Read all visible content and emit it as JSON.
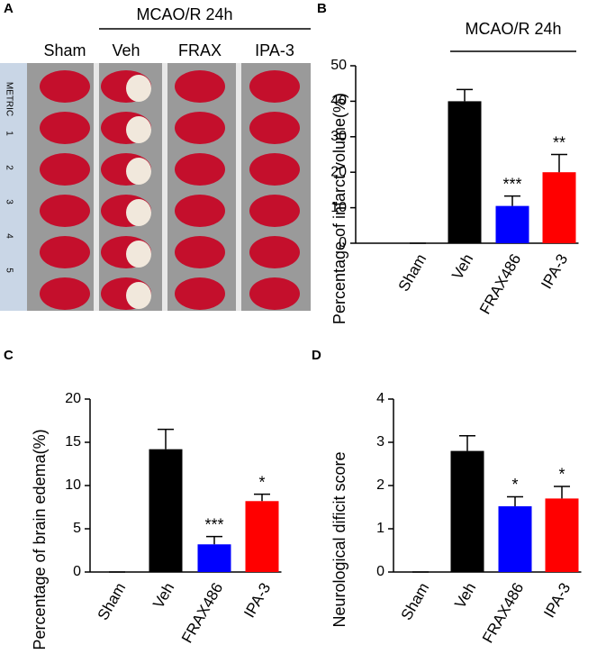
{
  "photo_panel": {
    "label": "A",
    "header": "MCAO/R 24h",
    "columns": [
      "Sham",
      "Veh",
      "FRAX",
      "IPA-3"
    ],
    "ruler_labels": [
      "METRIC",
      "1",
      "2",
      "3",
      "4",
      "5"
    ]
  },
  "chart_data": [
    {
      "type": "bar",
      "label": "B",
      "header": "MCAO/R 24h",
      "y_label": "Percentage of infarct volume(%)",
      "categories": [
        "Sham",
        "Veh",
        "FRAX486",
        "IPA-3"
      ],
      "values": [
        0,
        40,
        10.5,
        20
      ],
      "errors": [
        0,
        3.3,
        2.8,
        5
      ],
      "annotations": [
        null,
        null,
        "***",
        "**"
      ],
      "colors": [
        "#000000",
        "#000000",
        "#0000ff",
        "#ff0000"
      ],
      "ylim": [
        0,
        50
      ],
      "yticks": [
        0,
        10,
        20,
        30,
        40,
        50
      ]
    },
    {
      "type": "bar",
      "label": "C",
      "y_label": "Percentage of brain edema(%)",
      "categories": [
        "Sham",
        "Veh",
        "FRAX486",
        "IPA-3"
      ],
      "values": [
        0,
        14.2,
        3.2,
        8.2
      ],
      "errors": [
        0,
        2.3,
        0.9,
        0.8
      ],
      "annotations": [
        null,
        null,
        "***",
        "*"
      ],
      "colors": [
        "#000000",
        "#000000",
        "#0000ff",
        "#ff0000"
      ],
      "ylim": [
        0,
        20
      ],
      "yticks": [
        0,
        5,
        10,
        15,
        20
      ]
    },
    {
      "type": "bar",
      "label": "D",
      "y_label": "Neurological dificit score",
      "categories": [
        "Sham",
        "Veh",
        "FRAX486",
        "IPA-3"
      ],
      "values": [
        0,
        2.8,
        1.52,
        1.7
      ],
      "errors": [
        0,
        0.35,
        0.22,
        0.28
      ],
      "annotations": [
        null,
        null,
        "*",
        "*"
      ],
      "colors": [
        "#000000",
        "#000000",
        "#0000ff",
        "#ff0000"
      ],
      "ylim": [
        0,
        4
      ],
      "yticks": [
        0,
        1,
        2,
        3,
        4
      ]
    }
  ]
}
